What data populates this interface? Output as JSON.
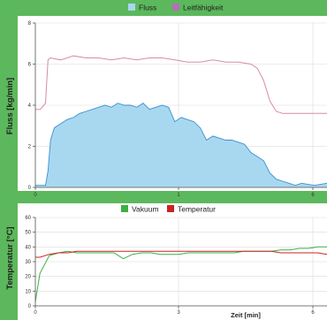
{
  "colors": {
    "frame_green": "#5cb85c",
    "fill_blue": "#a8d8f0",
    "line_blue": "#3a8fcf",
    "conductivity_pink": "#d98aa8",
    "legend_violet": "#b56fb5",
    "vacuum_green": "#3cb043",
    "temperature_red": "#cc2222",
    "grid": "#d9d9d9"
  },
  "chart_data": [
    {
      "type": "area",
      "legend": [
        "Fluss",
        "Leitfähigkeit"
      ],
      "ylabel": "Fluss [kg/min]",
      "xlabel": "",
      "ylim": [
        0,
        8
      ],
      "yticks": [
        "0",
        "2",
        "4",
        "6",
        "8"
      ],
      "xticks": [
        "0",
        "1",
        "6"
      ],
      "grid": true,
      "legend_position": "top-center",
      "series": [
        {
          "name": "Fluss",
          "x": [
            0,
            0.04,
            0.08,
            0.1,
            0.12,
            0.15,
            0.2,
            0.25,
            0.3,
            0.35,
            0.4,
            0.45,
            0.5,
            0.55,
            0.6,
            0.65,
            0.7,
            0.75,
            0.8,
            0.85,
            0.9,
            0.95,
            1.0,
            1.05,
            1.1,
            1.15,
            1.2,
            1.25,
            1.3,
            1.35,
            1.4,
            1.45,
            1.5,
            1.55,
            1.6,
            1.65,
            1.7,
            1.75,
            1.8,
            1.85,
            1.9,
            1.95,
            2.0,
            2.05,
            2.1,
            2.2,
            2.3
          ],
          "values": [
            0.1,
            0.1,
            0.1,
            0.8,
            2.3,
            2.9,
            3.1,
            3.3,
            3.4,
            3.6,
            3.7,
            3.8,
            3.9,
            4.0,
            3.9,
            4.1,
            4.0,
            4.0,
            3.9,
            4.1,
            3.8,
            3.9,
            4.0,
            3.9,
            3.2,
            3.4,
            3.3,
            3.2,
            2.9,
            2.3,
            2.5,
            2.4,
            2.3,
            2.3,
            2.2,
            2.1,
            1.7,
            1.5,
            1.3,
            0.7,
            0.4,
            0.3,
            0.2,
            0.1,
            0.2,
            0.1,
            0.2
          ]
        },
        {
          "name": "Leitfähigkeit",
          "x": [
            0,
            0.04,
            0.08,
            0.1,
            0.12,
            0.2,
            0.3,
            0.4,
            0.5,
            0.6,
            0.7,
            0.8,
            0.9,
            1.0,
            1.1,
            1.2,
            1.3,
            1.4,
            1.5,
            1.6,
            1.7,
            1.75,
            1.8,
            1.85,
            1.9,
            1.95,
            2.0,
            2.1,
            2.2,
            2.3
          ],
          "values": [
            3.8,
            3.8,
            4.1,
            6.2,
            6.3,
            6.2,
            6.4,
            6.3,
            6.3,
            6.2,
            6.3,
            6.2,
            6.3,
            6.3,
            6.2,
            6.1,
            6.1,
            6.2,
            6.1,
            6.1,
            6.0,
            5.8,
            5.2,
            4.2,
            3.7,
            3.6,
            3.6,
            3.6,
            3.6,
            3.6
          ]
        }
      ]
    },
    {
      "type": "line",
      "legend": [
        "Vakuum",
        "Temperatur"
      ],
      "ylabel": "Temperatur [°C]",
      "xlabel": "Zeit [min]",
      "ylim": [
        0,
        60
      ],
      "yticks": [
        "0",
        "10",
        "20",
        "30",
        "40",
        "50",
        "60"
      ],
      "xticks": [
        "0",
        "3",
        "6"
      ],
      "grid": true,
      "legend_position": "top-center",
      "series": [
        {
          "name": "Vakuum",
          "x": [
            0,
            0.1,
            0.3,
            0.5,
            0.7,
            0.9,
            1.1,
            1.3,
            1.5,
            1.7,
            1.9,
            2.1,
            2.3,
            2.5,
            2.7,
            2.9,
            3.1,
            3.3,
            3.5,
            3.7,
            3.9,
            4.1,
            4.3,
            4.5,
            4.7,
            4.9,
            5.1,
            5.3,
            5.5,
            5.7,
            5.9,
            6.1,
            6.3
          ],
          "values": [
            3,
            22,
            34,
            36,
            37,
            36,
            36,
            36,
            36,
            36,
            32,
            35,
            36,
            36,
            35,
            35,
            35,
            36,
            36,
            36,
            36,
            36,
            36,
            37,
            37,
            37,
            37,
            38,
            38,
            39,
            39,
            40,
            40
          ]
        },
        {
          "name": "Temperatur",
          "x": [
            0,
            0.1,
            0.3,
            0.5,
            0.7,
            0.9,
            1.1,
            1.3,
            1.5,
            1.7,
            1.9,
            2.1,
            2.3,
            2.5,
            2.7,
            2.9,
            3.1,
            3.3,
            3.5,
            3.7,
            3.9,
            4.1,
            4.3,
            4.5,
            4.7,
            4.9,
            5.1,
            5.3,
            5.5,
            5.7,
            5.9,
            6.1,
            6.3
          ],
          "values": [
            33,
            33,
            35,
            36,
            36,
            37,
            37,
            37,
            37,
            37,
            37,
            37,
            37,
            37,
            37,
            37,
            37,
            37,
            37,
            37,
            37,
            37,
            37,
            37,
            37,
            37,
            37,
            36,
            36,
            36,
            36,
            36,
            35
          ]
        }
      ]
    }
  ]
}
